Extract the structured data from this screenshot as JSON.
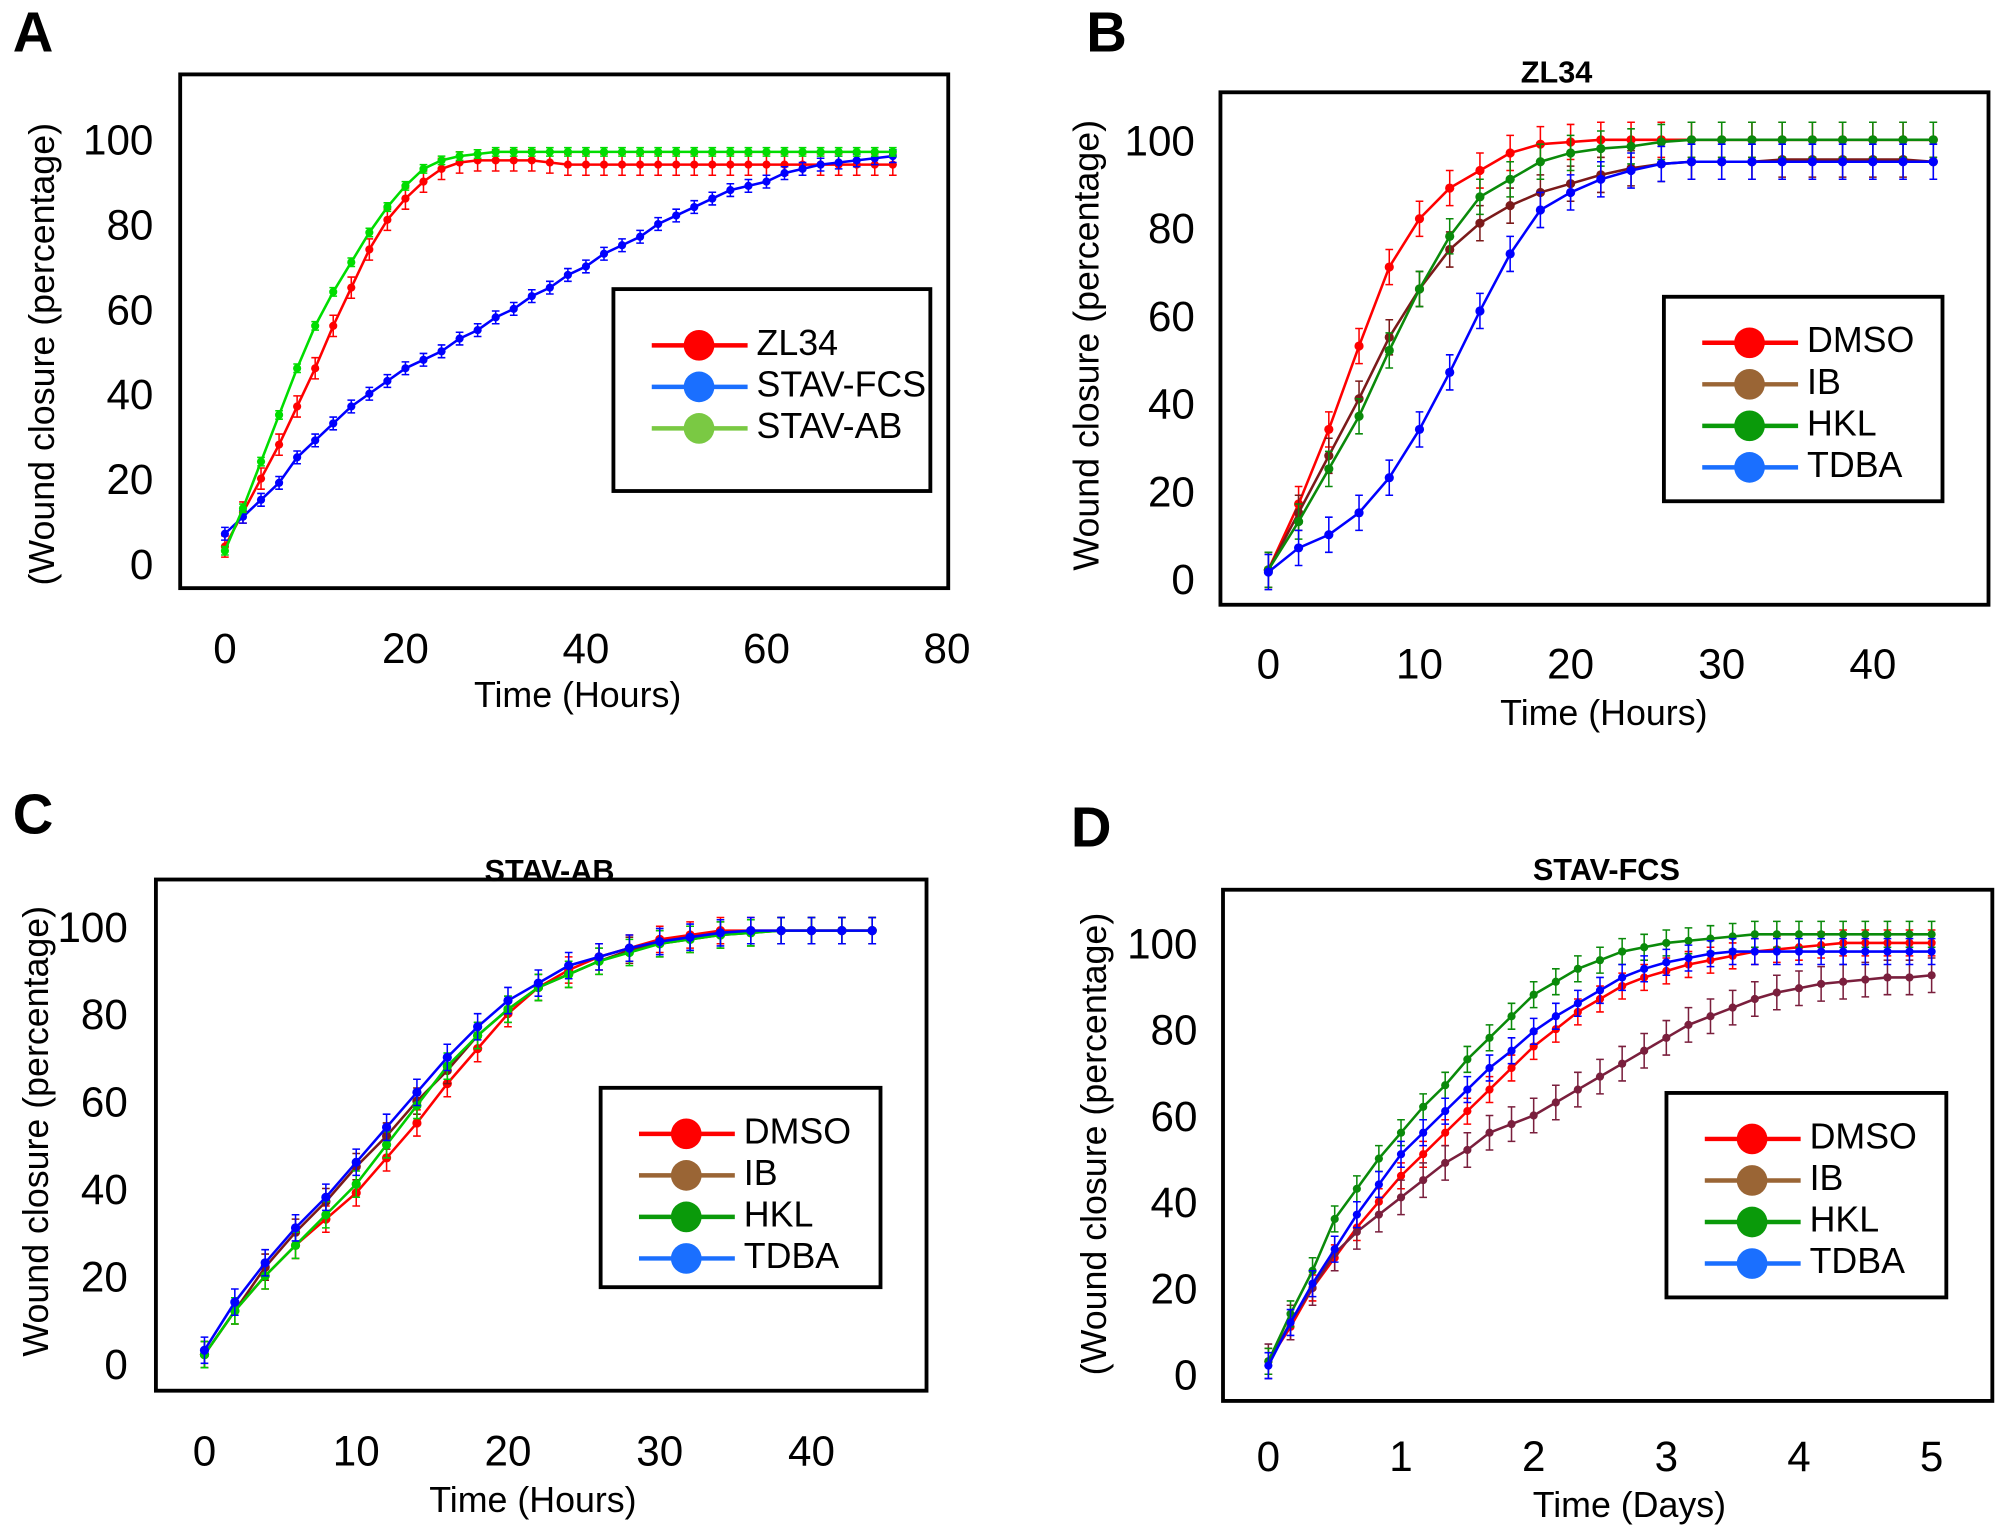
{
  "chart_data": [
    {
      "panel": "A",
      "type": "line",
      "title": "",
      "xlabel": "Time (Hours)",
      "ylabel": "(Wound closure (percentage)",
      "xticks": [
        "0",
        "20",
        "40",
        "60",
        "80"
      ],
      "yticks": [
        "0",
        "20",
        "40",
        "60",
        "80",
        "100"
      ],
      "xlim": [
        -5,
        80
      ],
      "ylim": [
        -5,
        116
      ],
      "grid": false,
      "legend": "right",
      "x": [
        0,
        2,
        4,
        6,
        8,
        10,
        12,
        14,
        16,
        18,
        20,
        22,
        24,
        26,
        28,
        30,
        32,
        34,
        36,
        38,
        40,
        42,
        44,
        46,
        48,
        50,
        52,
        54,
        56,
        58,
        60,
        62,
        64,
        66,
        68,
        70,
        72,
        74
      ],
      "series": [
        {
          "name": "ZL34",
          "color": "#ff0000",
          "legend_color": "#ff0000",
          "error": 2.5,
          "values": [
            5,
            13,
            21,
            29,
            38,
            47,
            57,
            66,
            75,
            82,
            87,
            91,
            94,
            95.5,
            96,
            96,
            96,
            96,
            95.5,
            95,
            95,
            95,
            95,
            95,
            95,
            95,
            95,
            95,
            95,
            95,
            95,
            95,
            95,
            95,
            95,
            95,
            95,
            95
          ]
        },
        {
          "name": "STAV-FCS",
          "color": "#0000ff",
          "legend_color": "#1a6fff",
          "error": 1.5,
          "values": [
            8,
            12,
            16,
            20,
            26,
            30,
            34,
            38,
            41,
            44,
            47,
            49,
            51,
            54,
            56,
            59,
            61,
            64,
            66,
            69,
            71,
            74,
            76,
            78,
            81,
            83,
            85,
            87,
            89,
            90,
            91,
            93,
            94,
            95,
            95.5,
            96,
            96.5,
            97
          ]
        },
        {
          "name": "STAV-AB",
          "color": "#00dd00",
          "legend_color": "#7ac943",
          "error": 1,
          "values": [
            4,
            14,
            25,
            36,
            47,
            57,
            65,
            72,
            79,
            85,
            90,
            94,
            96,
            97,
            97.5,
            98,
            98,
            98,
            98,
            98,
            98,
            98,
            98,
            98,
            98,
            98,
            98,
            98,
            98,
            98,
            98,
            98,
            98,
            98,
            98,
            98,
            98,
            98
          ]
        }
      ]
    },
    {
      "panel": "B",
      "type": "line",
      "title": "ZL34",
      "xlabel": "Time (Hours)",
      "ylabel": "Wound closure (percentage)",
      "xticks": [
        "0",
        "10",
        "20",
        "30",
        "40"
      ],
      "yticks": [
        "0",
        "20",
        "40",
        "60",
        "80",
        "100"
      ],
      "xlim": [
        -3,
        47
      ],
      "ylim": [
        -5,
        112
      ],
      "grid": false,
      "legend": "right",
      "x": [
        0,
        2,
        4,
        6,
        8,
        10,
        12,
        14,
        16,
        18,
        20,
        22,
        24,
        26,
        28,
        30,
        32,
        34,
        36,
        38,
        40,
        42,
        44
      ],
      "series": [
        {
          "name": "DMSO",
          "color": "#ff0000",
          "legend_color": "#ff0000",
          "error": 4,
          "values": [
            3,
            18,
            35,
            54,
            72,
            83,
            90,
            94,
            98,
            100,
            100.5,
            101,
            101,
            101,
            101,
            101,
            101,
            101,
            101,
            101,
            101,
            101,
            101
          ]
        },
        {
          "name": "IB",
          "color": "#7b1a1a",
          "legend_color": "#9a6535",
          "error": 4,
          "values": [
            3,
            16,
            29,
            42,
            56,
            67,
            76,
            82,
            86,
            89,
            91,
            93,
            94.5,
            95.5,
            96,
            96,
            96,
            96.5,
            96.5,
            96.5,
            96.5,
            96.5,
            96
          ]
        },
        {
          "name": "HKL",
          "color": "#0a8a0a",
          "legend_color": "#0a9a0a",
          "error": 4,
          "values": [
            3,
            14,
            26,
            38,
            53,
            67,
            79,
            88,
            92,
            96,
            98,
            99,
            99.5,
            100.5,
            101,
            101,
            101,
            101,
            101,
            101,
            101,
            101,
            101
          ]
        },
        {
          "name": "TDBA",
          "color": "#0000ff",
          "legend_color": "#1a6fff",
          "error": 4,
          "values": [
            2.5,
            8,
            11,
            16,
            24,
            35,
            48,
            62,
            75,
            85,
            89,
            92,
            94,
            95.5,
            96,
            96,
            96,
            96,
            96,
            96,
            96,
            96,
            96
          ]
        }
      ]
    },
    {
      "panel": "C",
      "type": "line",
      "title": "STAV-AB",
      "xlabel": "Time (Hours)",
      "ylabel": "Wound closure (percentage)",
      "xticks": [
        "0",
        "10",
        "20",
        "30",
        "40"
      ],
      "yticks": [
        "0",
        "20",
        "40",
        "60",
        "80",
        "100"
      ],
      "xlim": [
        -3,
        48
      ],
      "ylim": [
        -5,
        112
      ],
      "grid": false,
      "legend": "right",
      "x": [
        0,
        2,
        4,
        6,
        8,
        10,
        12,
        14,
        16,
        18,
        20,
        22,
        24,
        26,
        28,
        30,
        32,
        34,
        36,
        38,
        40,
        42,
        44
      ],
      "series": [
        {
          "name": "DMSO",
          "color": "#ff0000",
          "legend_color": "#ff0000",
          "error": 3,
          "values": [
            3,
            13,
            21,
            28,
            34,
            40,
            48,
            56,
            65,
            73,
            81,
            87,
            91,
            94,
            96,
            98,
            99,
            100,
            100,
            100,
            100,
            100,
            100
          ]
        },
        {
          "name": "IB",
          "color": "#7b1a1a",
          "legend_color": "#9a6535",
          "error": 3,
          "values": [
            3,
            13,
            23,
            31,
            38,
            46,
            53,
            61,
            68,
            76,
            82,
            87,
            90,
            93,
            95.5,
            97,
            98,
            99,
            99.5,
            100,
            100,
            100,
            100
          ]
        },
        {
          "name": "HKL",
          "color": "#00cc00",
          "legend_color": "#0a9a0a",
          "error": 3,
          "values": [
            3,
            13,
            21,
            28,
            35,
            42,
            51,
            60,
            69,
            76,
            82,
            87,
            90,
            93,
            95,
            97,
            98,
            99,
            99.5,
            100,
            100,
            100,
            100
          ]
        },
        {
          "name": "TDBA",
          "color": "#0000ff",
          "legend_color": "#1a6fff",
          "error": 3,
          "values": [
            4,
            15,
            24,
            32,
            39,
            47,
            55,
            63,
            71,
            78,
            84,
            88,
            92,
            94,
            96,
            97.5,
            98.5,
            99.5,
            100,
            100,
            100,
            100,
            100
          ]
        }
      ]
    },
    {
      "panel": "D",
      "type": "line",
      "title": "STAV-FCS",
      "xlabel": "Time (Days)",
      "ylabel": "(Wound closure (percentage)",
      "xticks": [
        "0",
        "1",
        "2",
        "3",
        "4",
        "5"
      ],
      "yticks": [
        "0",
        "20",
        "40",
        "60",
        "80",
        "100"
      ],
      "xlim": [
        -0.35,
        5.5
      ],
      "ylim": [
        -5,
        114
      ],
      "grid": false,
      "legend": "right",
      "x": [
        0,
        0.167,
        0.333,
        0.5,
        0.667,
        0.833,
        1,
        1.167,
        1.333,
        1.5,
        1.667,
        1.833,
        2,
        2.167,
        2.333,
        2.5,
        2.667,
        2.833,
        3,
        3.167,
        3.333,
        3.5,
        3.667,
        3.833,
        4,
        4.167,
        4.333,
        4.5,
        4.667,
        4.833,
        5
      ],
      "series": [
        {
          "name": "DMSO",
          "color": "#ff0000",
          "legend_color": "#ff0000",
          "error": 3,
          "values": [
            4,
            12,
            21,
            28,
            35,
            41,
            47,
            52,
            57,
            62,
            67,
            72,
            77,
            81,
            85,
            88,
            91,
            93,
            94.5,
            96,
            97,
            98,
            99,
            99.5,
            100,
            100.5,
            101,
            101,
            101,
            101,
            101
          ]
        },
        {
          "name": "IB",
          "color": "#7a1f3d",
          "legend_color": "#9a6535",
          "error": 4,
          "values": [
            4,
            13,
            21,
            29,
            34,
            38,
            42,
            46,
            50,
            53,
            57,
            59,
            61,
            64,
            67,
            70,
            73,
            76,
            79,
            82,
            84,
            86,
            88,
            89.5,
            90.5,
            91.5,
            92,
            92.5,
            93,
            93,
            93.5
          ]
        },
        {
          "name": "HKL",
          "color": "#0a8a0a",
          "legend_color": "#0a9a0a",
          "error": 3,
          "values": [
            4,
            15,
            25,
            37,
            44,
            51,
            57,
            63,
            68,
            74,
            79,
            84,
            89,
            92,
            95,
            97,
            99,
            100,
            101,
            101.5,
            102,
            102.5,
            103,
            103,
            103,
            103,
            103,
            103,
            103,
            103,
            103
          ]
        },
        {
          "name": "TDBA",
          "color": "#0000ff",
          "legend_color": "#1a6fff",
          "error": 3,
          "values": [
            3,
            13,
            22,
            30,
            38,
            45,
            52,
            57,
            62,
            67,
            72,
            76,
            80.5,
            84,
            87,
            90,
            93,
            95,
            96.5,
            97.5,
            98.5,
            99,
            99,
            99,
            99,
            99,
            99,
            99,
            99,
            99,
            99
          ]
        }
      ]
    }
  ]
}
